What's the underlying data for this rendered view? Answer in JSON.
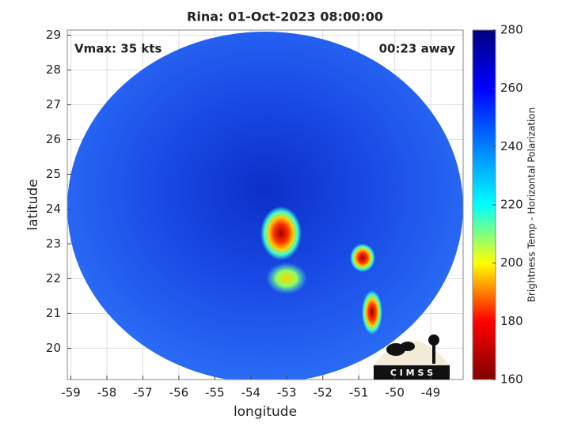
{
  "chart_data": {
    "type": "map",
    "title": "Rina: 01-Oct-2023 08:00:00",
    "annotations": [
      "Vmax: 35 kts",
      "00:23 away"
    ],
    "xlabel": "longitude",
    "ylabel": "latitude",
    "xlim": [
      -59.1,
      -48.1
    ],
    "xticks": [
      -59,
      -58,
      -57,
      -56,
      -55,
      -54,
      -53,
      -52,
      -51,
      -50,
      -49
    ],
    "ylim": [
      19.1,
      29.15
    ],
    "yticks": [
      20,
      21,
      22,
      23,
      24,
      25,
      26,
      27,
      28,
      29
    ],
    "grid": true,
    "colorbar": {
      "label": "Brightness Temp - Horizontal Polarization",
      "lim": [
        160,
        280
      ],
      "ticks": [
        160,
        180,
        200,
        220,
        240,
        260,
        280
      ],
      "colors": [
        "#800000",
        "#ff0000",
        "#ffff00",
        "#00ffff",
        "#0080ff",
        "#0000ff",
        "#000080"
      ]
    },
    "logo": "C I M S S"
  }
}
